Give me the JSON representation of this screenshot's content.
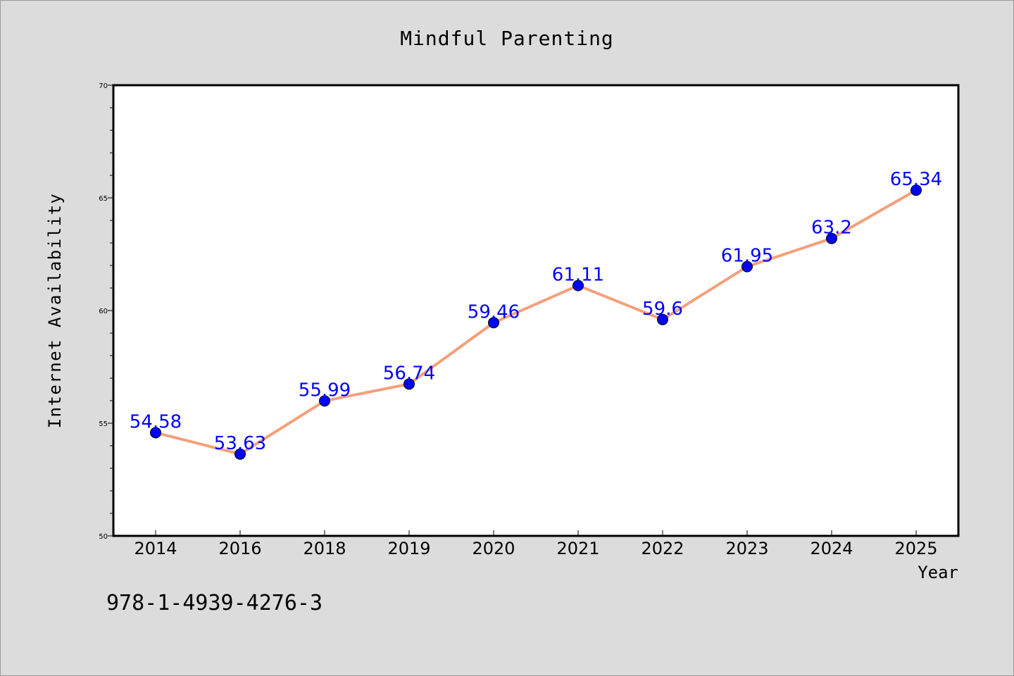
{
  "chart_data": {
    "type": "line",
    "title": "Mindful Parenting",
    "xlabel": "Year",
    "ylabel": "Internet Availability",
    "categories": [
      "2014",
      "2016",
      "2018",
      "2019",
      "2020",
      "2021",
      "2022",
      "2023",
      "2024",
      "2025"
    ],
    "series": [
      {
        "values": [
          54.58,
          53.63,
          55.99,
          56.74,
          59.46,
          61.11,
          59.6,
          61.95,
          63.2,
          65.34
        ],
        "line_color": "#f4a07a",
        "marker_color": "#0000ff"
      }
    ],
    "data_labels": [
      "54.58",
      "53.63",
      "55.99",
      "56.74",
      "59.46",
      "61.11",
      "59.6",
      "61.95",
      "63.2",
      "65.34"
    ],
    "ylim": [
      50,
      70
    ],
    "yticks": [
      50,
      55,
      60,
      65,
      70
    ],
    "ytick_labels": [
      "50",
      "55",
      "60",
      "65",
      "70"
    ],
    "grid": false,
    "legend": "none",
    "label_color": "#0000ff"
  },
  "footer": {
    "isbn": "978-1-4939-4276-3"
  }
}
